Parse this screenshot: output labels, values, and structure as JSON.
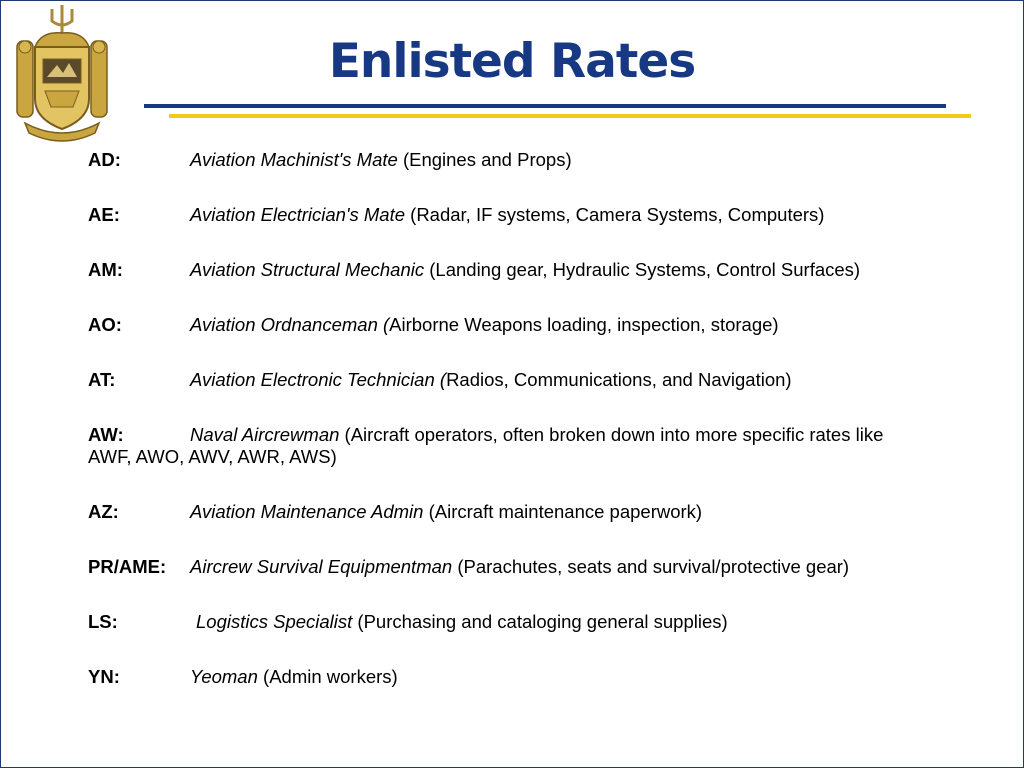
{
  "colors": {
    "title": "#173882",
    "rule_blue": "#173882",
    "rule_gold": "#f2c81a",
    "border": "#1f3a73"
  },
  "title": "Enlisted Rates",
  "crest_icon": "naval-academy-crest-icon",
  "rates": [
    {
      "code": "AD:",
      "name": "Aviation Machinist's Mate",
      "desc": " (Engines and Props)"
    },
    {
      "code": "AE:",
      "name": "Aviation Electrician's Mate",
      "desc": " (Radar, IF systems, Camera Systems, Computers)"
    },
    {
      "code": "AM:",
      "name": "Aviation Structural Mechanic",
      "desc": " (Landing gear, Hydraulic Systems, Control Surfaces)"
    },
    {
      "code": "AO:",
      "name": "Aviation Ordnanceman (",
      "desc": "Airborne Weapons loading, inspection, storage)"
    },
    {
      "code": "AT:",
      "name": "Aviation Electronic Technician (",
      "desc": "Radios, Communications, and Navigation)"
    },
    {
      "code": "AW:",
      "name": "Naval Aircrewman",
      "desc": " (Aircraft operators, often broken down into more specific rates like AWF, AWO, AWV, AWR, AWS)"
    },
    {
      "code": "AZ:",
      "name": "Aviation Maintenance Admin",
      "desc": " (Aircraft maintenance paperwork)"
    },
    {
      "code": "PR/AME:",
      "name": "Aircrew Survival Equipmentman",
      "desc": " (Parachutes, seats and survival/protective gear)"
    },
    {
      "code": "LS:",
      "name": "Logistics Specialist",
      "desc": " (Purchasing and cataloging general supplies)"
    },
    {
      "code": "YN:",
      "name": "Yeoman",
      "desc": " (Admin workers)"
    }
  ]
}
